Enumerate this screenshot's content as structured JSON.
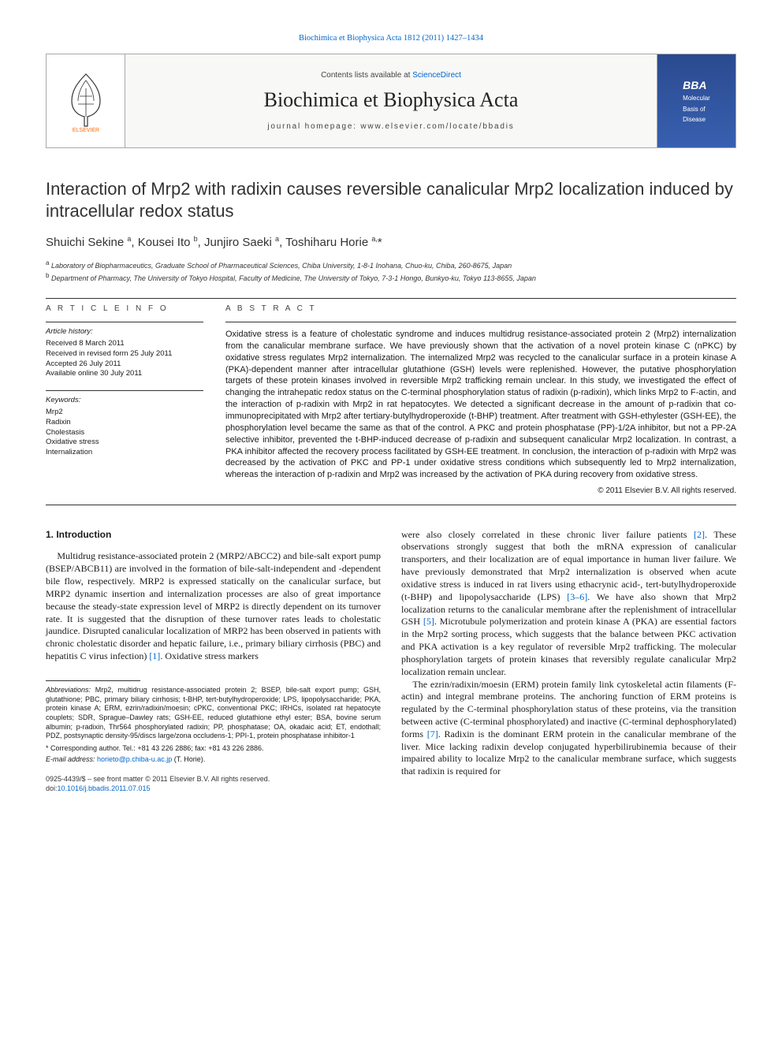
{
  "top_link": "Biochimica et Biophysica Acta 1812 (2011) 1427–1434",
  "header": {
    "contents_prefix": "Contents lists available at ",
    "contents_link": "ScienceDirect",
    "journal": "Biochimica et Biophysica Acta",
    "homepage": "journal homepage: www.elsevier.com/locate/bbadis",
    "cover_main": "BBA",
    "cover_sub1": "Molecular",
    "cover_sub2": "Basis of",
    "cover_sub3": "Disease"
  },
  "title": "Interaction of Mrp2 with radixin causes reversible canalicular Mrp2 localization induced by intracellular redox status",
  "authors_html": "Shuichi Sekine <sup>a</sup>, Kousei Ito <sup>b</sup>, Junjiro Saeki <sup>a</sup>, Toshiharu Horie <sup>a,</sup>*",
  "affiliations": {
    "a": "Laboratory of Biopharmaceutics, Graduate School of Pharmaceutical Sciences, Chiba University, 1-8-1 Inohana, Chuo-ku, Chiba, 260-8675, Japan",
    "b": "Department of Pharmacy, The University of Tokyo Hospital, Faculty of Medicine, The University of Tokyo, 7-3-1 Hongo, Bunkyo-ku, Tokyo 113-8655, Japan"
  },
  "article_info": {
    "heading": "A R T I C L E   I N F O",
    "history_label": "Article history:",
    "history": [
      "Received 8 March 2011",
      "Received in revised form 25 July 2011",
      "Accepted 26 July 2011",
      "Available online 30 July 2011"
    ],
    "keywords_label": "Keywords:",
    "keywords": [
      "Mrp2",
      "Radixin",
      "Cholestasis",
      "Oxidative stress",
      "Internalization"
    ]
  },
  "abstract": {
    "heading": "A B S T R A C T",
    "text": "Oxidative stress is a feature of cholestatic syndrome and induces multidrug resistance-associated protein 2 (Mrp2) internalization from the canalicular membrane surface. We have previously shown that the activation of a novel protein kinase C (nPKC) by oxidative stress regulates Mrp2 internalization. The internalized Mrp2 was recycled to the canalicular surface in a protein kinase A (PKA)-dependent manner after intracellular glutathione (GSH) levels were replenished. However, the putative phosphorylation targets of these protein kinases involved in reversible Mrp2 trafficking remain unclear. In this study, we investigated the effect of changing the intrahepatic redox status on the C-terminal phosphorylation status of radixin (p-radixin), which links Mrp2 to F-actin, and the interaction of p-radixin with Mrp2 in rat hepatocytes. We detected a significant decrease in the amount of p-radixin that co-immunoprecipitated with Mrp2 after tertiary-butylhydroperoxide (t-BHP) treatment. After treatment with GSH-ethylester (GSH-EE), the phosphorylation level became the same as that of the control. A PKC and protein phosphatase (PP)-1/2A inhibitor, but not a PP-2A selective inhibitor, prevented the t-BHP-induced decrease of p-radixin and subsequent canalicular Mrp2 localization. In contrast, a PKA inhibitor affected the recovery process facilitated by GSH-EE treatment. In conclusion, the interaction of p-radixin with Mrp2 was decreased by the activation of PKC and PP-1 under oxidative stress conditions which subsequently led to Mrp2 internalization, whereas the interaction of p-radixin and Mrp2 was increased by the activation of PKA during recovery from oxidative stress.",
    "copyright": "© 2011 Elsevier B.V. All rights reserved."
  },
  "intro": {
    "heading": "1. Introduction",
    "col1": "Multidrug resistance-associated protein 2 (MRP2/ABCC2) and bile-salt export pump (BSEP/ABCB11) are involved in the formation of bile-salt-independent and -dependent bile flow, respectively. MRP2 is expressed statically on the canalicular surface, but MRP2 dynamic insertion and internalization processes are also of great importance because the steady-state expression level of MRP2 is directly dependent on its turnover rate. It is suggested that the disruption of these turnover rates leads to cholestatic jaundice. Disrupted canalicular localization of MRP2 has been observed in patients with chronic cholestatic disorder and hepatic failure, i.e., primary biliary cirrhosis (PBC) and hepatitis C virus infection) ",
    "col1_ref": "[1]",
    "col1_tail": ". Oxidative stress markers",
    "col2a": "were also closely correlated in these chronic liver failure patients ",
    "col2a_ref": "[2]",
    "col2a_tail": ". These observations strongly suggest that both the mRNA expression of canalicular transporters, and their localization are of equal importance in human liver failure. We have previously demonstrated that Mrp2 internalization is observed when acute oxidative stress is induced in rat livers using ethacrynic acid-, tert-butylhydroperoxide (t-BHP) and lipopolysaccharide (LPS) ",
    "col2a_ref2": "[3–6]",
    "col2a_tail2": ". We have also shown that Mrp2 localization returns to the canalicular membrane after the replenishment of intracellular GSH ",
    "col2a_ref3": "[5]",
    "col2a_tail3": ". Microtubule polymerization and protein kinase A (PKA) are essential factors in the Mrp2 sorting process, which suggests that the balance between PKC activation and PKA activation is a key regulator of reversible Mrp2 trafficking. The molecular phosphorylation targets of protein kinases that reversibly regulate canalicular Mrp2 localization remain unclear.",
    "col2b": "The ezrin/radixin/moesin (ERM) protein family link cytoskeletal actin filaments (F-actin) and integral membrane proteins. The anchoring function of ERM proteins is regulated by the C-terminal phosphorylation status of these proteins, via the transition between active (C-terminal phosphorylated) and inactive (C-terminal dephosphorylated) forms ",
    "col2b_ref": "[7]",
    "col2b_tail": ". Radixin is the dominant ERM protein in the canalicular membrane of the liver. Mice lacking radixin develop conjugated hyperbilirubinemia because of their impaired ability to localize Mrp2 to the canalicular membrane surface, which suggests that radixin is required for"
  },
  "footnotes": {
    "abbrev_label": "Abbreviations:",
    "abbrev": " Mrp2, multidrug resistance-associated protein 2; BSEP, bile-salt export pump; GSH, glutathione; PBC, primary biliary cirrhosis; t-BHP, tert-butylhydroperoxide; LPS, lipopolysaccharide; PKA, protein kinase A; ERM, ezrin/radixin/moesin; cPKC, conventional PKC; IRHCs, isolated rat hepatocyte couplets; SDR, Sprague–Dawley rats; GSH-EE, reduced glutathione ethyl ester; BSA, bovine serum albumin; p-radixin, Thr564 phosphorylated radixin; PP, phosphatase; OA, okadaic acid; ET, endothall; PDZ, postsynaptic density-95/discs large/zona occludens-1; PPI-1, protein phosphatase inhibitor-1",
    "corr_label": "* Corresponding author. Tel.: +81 43 226 2886; fax: +81 43 226 2886.",
    "email_label": "E-mail address:",
    "email": "horieto@p.chiba-u.ac.jp",
    "email_tail": " (T. Horie)."
  },
  "bottom": {
    "issn": "0925-4439/$ – see front matter © 2011 Elsevier B.V. All rights reserved.",
    "doi_label": "doi:",
    "doi": "10.1016/j.bbadis.2011.07.015"
  },
  "colors": {
    "link": "#0066cc",
    "text": "#1a1a1a",
    "rule": "#333333",
    "header_border": "#a8a8a8",
    "header_bg": "#f8f8f6",
    "cover_grad_top": "#2a4a8f",
    "cover_grad_bot": "#3860b0",
    "elsevier_orange": "#ff6a00"
  }
}
